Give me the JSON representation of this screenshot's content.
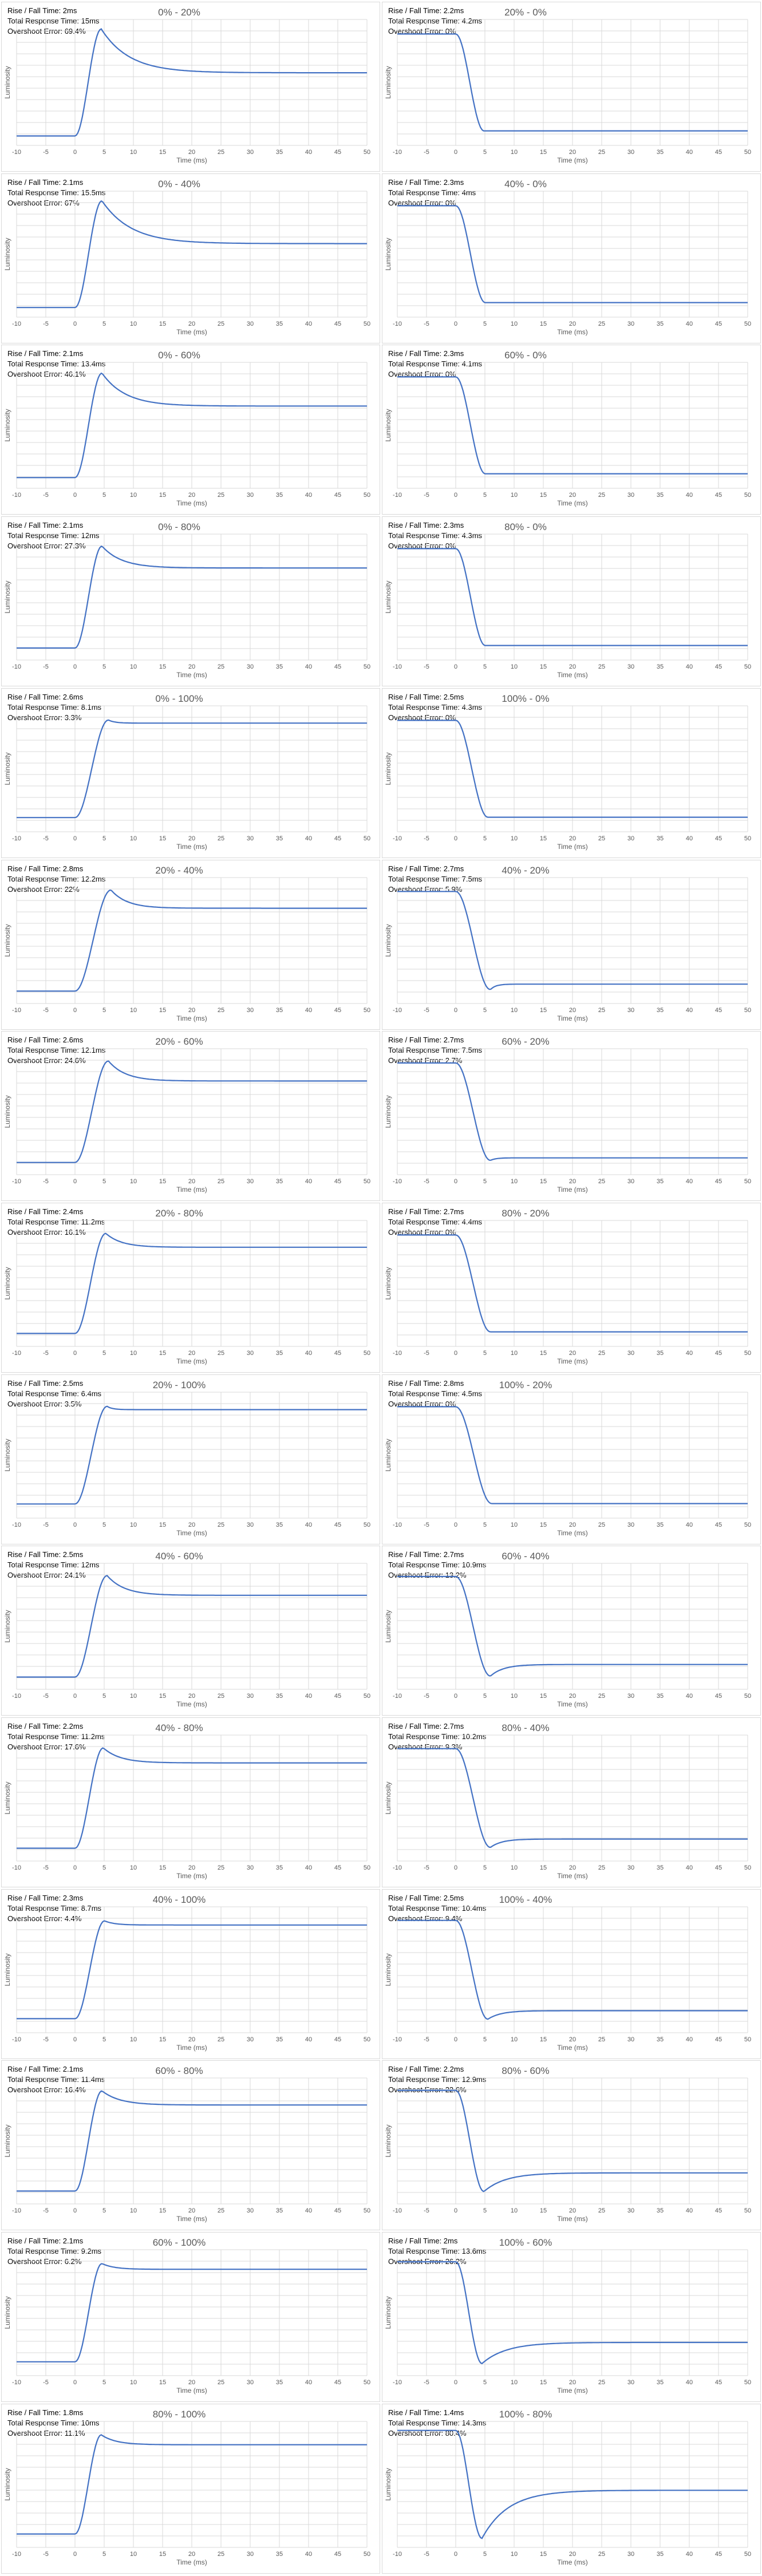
{
  "axes": {
    "xlabel": "Time (ms)",
    "ylabel": "Luminosity",
    "xticks": [
      -10,
      -5,
      0,
      5,
      10,
      15,
      20,
      25,
      30,
      35,
      40,
      45,
      50
    ],
    "xlim": [
      -10,
      50
    ]
  },
  "labels": {
    "rise_fall": "Rise / Fall Time: ",
    "total": "Total Response Time: ",
    "overshoot": "Overshoot Error: "
  },
  "colors": {
    "line": "#4472c4",
    "grid": "#d9d9d9",
    "border": "#d9d9d9"
  },
  "chart_data": [
    {
      "type": "line",
      "title": "0% - 20%",
      "rise_fall": "2ms",
      "total": "15ms",
      "overshoot": "69.4%",
      "from": 0,
      "to": 20
    },
    {
      "type": "line",
      "title": "20% - 0%",
      "rise_fall": "2.2ms",
      "total": "4.2ms",
      "overshoot": "0%",
      "from": 20,
      "to": 0
    },
    {
      "type": "line",
      "title": "0% - 40%",
      "rise_fall": "2.1ms",
      "total": "15.5ms",
      "overshoot": "67%",
      "from": 0,
      "to": 40
    },
    {
      "type": "line",
      "title": "40% - 0%",
      "rise_fall": "2.3ms",
      "total": "4ms",
      "overshoot": "0%",
      "from": 40,
      "to": 0
    },
    {
      "type": "line",
      "title": "0% - 60%",
      "rise_fall": "2.1ms",
      "total": "13.4ms",
      "overshoot": "46.1%",
      "from": 0,
      "to": 60
    },
    {
      "type": "line",
      "title": "60% - 0%",
      "rise_fall": "2.3ms",
      "total": "4.1ms",
      "overshoot": "0%",
      "from": 60,
      "to": 0
    },
    {
      "type": "line",
      "title": "0% - 80%",
      "rise_fall": "2.1ms",
      "total": "12ms",
      "overshoot": "27.3%",
      "from": 0,
      "to": 80
    },
    {
      "type": "line",
      "title": "80% - 0%",
      "rise_fall": "2.3ms",
      "total": "4.3ms",
      "overshoot": "0%",
      "from": 80,
      "to": 0
    },
    {
      "type": "line",
      "title": "0% - 100%",
      "rise_fall": "2.6ms",
      "total": "8.1ms",
      "overshoot": "3.3%",
      "from": 0,
      "to": 100
    },
    {
      "type": "line",
      "title": "100% - 0%",
      "rise_fall": "2.5ms",
      "total": "4.3ms",
      "overshoot": "0%",
      "from": 100,
      "to": 0
    },
    {
      "type": "line",
      "title": "20% - 40%",
      "rise_fall": "2.8ms",
      "total": "12.2ms",
      "overshoot": "22%",
      "from": 20,
      "to": 40
    },
    {
      "type": "line",
      "title": "40% - 20%",
      "rise_fall": "2.7ms",
      "total": "7.5ms",
      "overshoot": "5.9%",
      "from": 40,
      "to": 20
    },
    {
      "type": "line",
      "title": "20% - 60%",
      "rise_fall": "2.6ms",
      "total": "12.1ms",
      "overshoot": "24.6%",
      "from": 20,
      "to": 60
    },
    {
      "type": "line",
      "title": "60% - 20%",
      "rise_fall": "2.7ms",
      "total": "7.5ms",
      "overshoot": "2.7%",
      "from": 60,
      "to": 20
    },
    {
      "type": "line",
      "title": "20% - 80%",
      "rise_fall": "2.4ms",
      "total": "11.2ms",
      "overshoot": "16.1%",
      "from": 20,
      "to": 80
    },
    {
      "type": "line",
      "title": "80% - 20%",
      "rise_fall": "2.7ms",
      "total": "4.4ms",
      "overshoot": "0%",
      "from": 80,
      "to": 20
    },
    {
      "type": "line",
      "title": "20% - 100%",
      "rise_fall": "2.5ms",
      "total": "6.4ms",
      "overshoot": "3.5%",
      "from": 20,
      "to": 100
    },
    {
      "type": "line",
      "title": "100% - 20%",
      "rise_fall": "2.8ms",
      "total": "4.5ms",
      "overshoot": "0%",
      "from": 100,
      "to": 20
    },
    {
      "type": "line",
      "title": "40% - 60%",
      "rise_fall": "2.5ms",
      "total": "12ms",
      "overshoot": "24.1%",
      "from": 40,
      "to": 60
    },
    {
      "type": "line",
      "title": "60% - 40%",
      "rise_fall": "2.7ms",
      "total": "10.9ms",
      "overshoot": "13.2%",
      "from": 60,
      "to": 40
    },
    {
      "type": "line",
      "title": "40% - 80%",
      "rise_fall": "2.2ms",
      "total": "11.2ms",
      "overshoot": "17.6%",
      "from": 40,
      "to": 80
    },
    {
      "type": "line",
      "title": "80% - 40%",
      "rise_fall": "2.7ms",
      "total": "10.2ms",
      "overshoot": "9.3%",
      "from": 80,
      "to": 40
    },
    {
      "type": "line",
      "title": "40% - 100%",
      "rise_fall": "2.3ms",
      "total": "8.7ms",
      "overshoot": "4.4%",
      "from": 40,
      "to": 100
    },
    {
      "type": "line",
      "title": "100% - 40%",
      "rise_fall": "2.5ms",
      "total": "10.4ms",
      "overshoot": "9.4%",
      "from": 100,
      "to": 40
    },
    {
      "type": "line",
      "title": "60% - 80%",
      "rise_fall": "2.1ms",
      "total": "11.4ms",
      "overshoot": "16.4%",
      "from": 60,
      "to": 80
    },
    {
      "type": "line",
      "title": "80% - 60%",
      "rise_fall": "2.2ms",
      "total": "12.9ms",
      "overshoot": "22.6%",
      "from": 80,
      "to": 60
    },
    {
      "type": "line",
      "title": "60% - 100%",
      "rise_fall": "2.1ms",
      "total": "9.2ms",
      "overshoot": "6.2%",
      "from": 60,
      "to": 100
    },
    {
      "type": "line",
      "title": "100% - 60%",
      "rise_fall": "2ms",
      "total": "13.6ms",
      "overshoot": "26.2%",
      "from": 100,
      "to": 60
    },
    {
      "type": "line",
      "title": "80% - 100%",
      "rise_fall": "1.8ms",
      "total": "10ms",
      "overshoot": "11.1%",
      "from": 80,
      "to": 100
    },
    {
      "type": "line",
      "title": "100% - 80%",
      "rise_fall": "1.4ms",
      "total": "14.3ms",
      "overshoot": "80.4%",
      "from": 100,
      "to": 80
    }
  ]
}
